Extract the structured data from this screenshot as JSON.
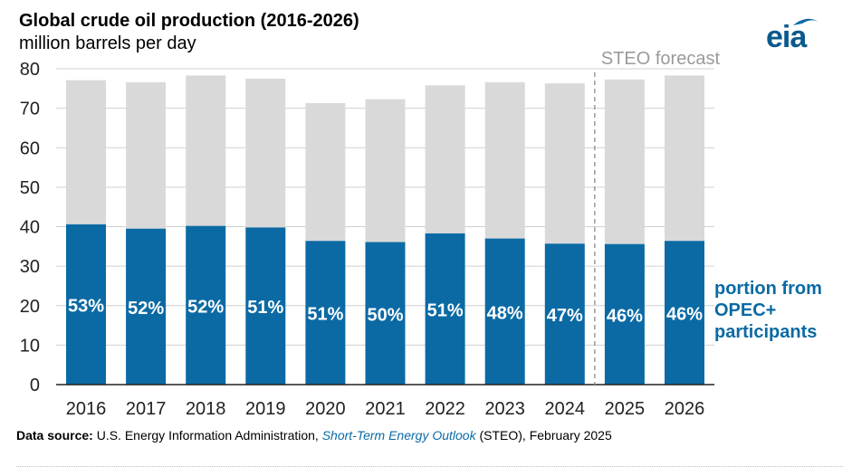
{
  "header": {
    "title": "Global crude oil production (2016-2026)",
    "subtitle": "million barrels per day",
    "logo_text": "eia"
  },
  "chart_data": {
    "type": "bar",
    "stacked": true,
    "categories": [
      "2016",
      "2017",
      "2018",
      "2019",
      "2020",
      "2021",
      "2022",
      "2023",
      "2024",
      "2025",
      "2026"
    ],
    "series": [
      {
        "name": "portion from OPEC+ participants",
        "values": [
          40.6,
          39.5,
          40.2,
          39.8,
          36.4,
          36.1,
          38.3,
          37.0,
          35.7,
          35.6,
          36.4
        ],
        "color": "#0b6aa4"
      },
      {
        "values": [
          36.5,
          37.1,
          38.1,
          37.7,
          34.9,
          36.2,
          37.5,
          39.6,
          40.6,
          41.7,
          41.9
        ],
        "color": "#d9d9d9"
      }
    ],
    "share_labels": [
      "53%",
      "52%",
      "52%",
      "51%",
      "51%",
      "50%",
      "51%",
      "48%",
      "47%",
      "46%",
      "46%"
    ],
    "ylim": [
      0,
      80
    ],
    "yticks": [
      "0",
      "10",
      "20",
      "30",
      "40",
      "50",
      "60",
      "70",
      "80"
    ],
    "grid": true,
    "forecast_start": "2025",
    "forecast_label": "STEO forecast",
    "annotation": "portion from OPEC+ participants"
  },
  "footer": {
    "label": "Data source:",
    "text1": " U.S. Energy Information Administration, ",
    "publication": "Short-Term Energy Outlook",
    "text2": " (STEO), February 2025"
  }
}
